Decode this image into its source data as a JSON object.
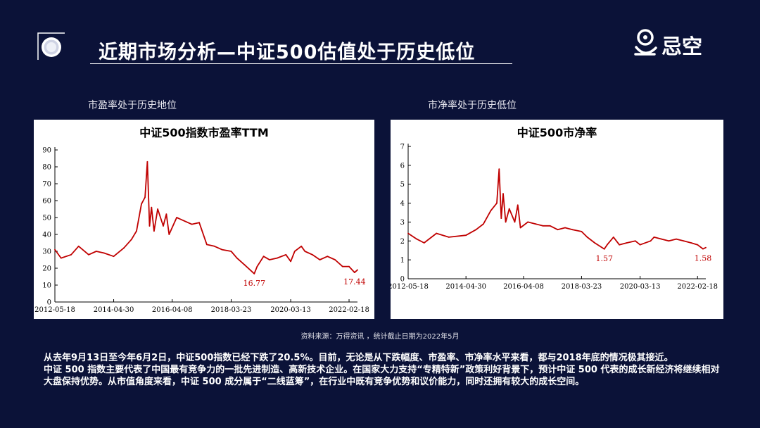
{
  "header": {
    "title": "近期市场分析—中证500估值处于历史低位",
    "logo_text": "忌空",
    "logo_icon": "brand-logo-icon",
    "corner_icon": "circle-bracket-icon"
  },
  "captions": {
    "left": "市盈率处于历史地位",
    "right": "市净率处于历史低位"
  },
  "source_note": "资料来源：万得资讯 ，统计截止日期为2022年5月",
  "paragraphs": [
    "从去年9月13日至今年6月2日，中证500指数已经下跌了20.5%。目前，无论是从下跌幅度、市盈率、市净率水平来看，都与2018年底的情况极其接近。",
    "中证 500 指数主要代表了中国最有竞争力的一批先进制造、高新技术企业。在国家大力支持“专精特新”政策利好背景下，预计中证 500 代表的成长新经济将继续相对大盘保持优势。从市值角度来看，中证 500 成分属于“二线蓝筹”，在行业中既有竞争优势和议价能力，同时还拥有较大的成长空间。"
  ],
  "colors": {
    "background": "#0b1238",
    "line": "#c00000",
    "annotation": "#c00000"
  },
  "chart_data": [
    {
      "type": "line",
      "title": "中证500指数市盈率TTM",
      "xlabel": "",
      "ylabel": "",
      "xlim": [
        "2012-05-18",
        "2022-05-31"
      ],
      "ylim": [
        0,
        90
      ],
      "yticks": [
        0,
        10,
        20,
        30,
        40,
        50,
        60,
        70,
        80,
        90
      ],
      "xtick_labels": [
        "2012-05-18",
        "2014-04-30",
        "2016-04-08",
        "2018-03-23",
        "2020-03-13",
        "2022-02-18"
      ],
      "grid": false,
      "annotations": [
        {
          "x": "2018-12-28",
          "y": 16.77,
          "text": "16.77"
        },
        {
          "x": "2022-04-26",
          "y": 17.44,
          "text": "17.44"
        }
      ],
      "series": [
        {
          "x": [
            "2012-05-18",
            "2012-08-01",
            "2012-12-01",
            "2013-03-01",
            "2013-07-01",
            "2013-10-01",
            "2014-01-01",
            "2014-04-30",
            "2014-09-01",
            "2014-12-01",
            "2015-02-01",
            "2015-04-01",
            "2015-05-15",
            "2015-06-12",
            "2015-07-08",
            "2015-08-01",
            "2015-09-01",
            "2015-10-15",
            "2015-12-22",
            "2016-01-28",
            "2016-03-01",
            "2016-06-01",
            "2016-09-01",
            "2016-12-01",
            "2017-03-01",
            "2017-06-01",
            "2017-09-01",
            "2017-12-01",
            "2018-03-23",
            "2018-06-01",
            "2018-09-01",
            "2018-12-28",
            "2019-02-01",
            "2019-04-20",
            "2019-07-01",
            "2019-10-01",
            "2020-01-15",
            "2020-03-13",
            "2020-05-01",
            "2020-07-20",
            "2020-09-01",
            "2020-12-01",
            "2021-03-01",
            "2021-06-01",
            "2021-09-01",
            "2021-12-01",
            "2022-02-18",
            "2022-04-26",
            "2022-05-31"
          ],
          "values": [
            31,
            26,
            28,
            33,
            28,
            30,
            29,
            27,
            32,
            37,
            42,
            58,
            62,
            83,
            45,
            56,
            42,
            55,
            45,
            52,
            40,
            50,
            48,
            46,
            47,
            34,
            33,
            31,
            30,
            26,
            22,
            16.77,
            21,
            27,
            25,
            26,
            28,
            24,
            30,
            33,
            30,
            28,
            25,
            27,
            25,
            21,
            21,
            17.44,
            19
          ]
        }
      ]
    },
    {
      "type": "line",
      "title": "中证500市净率",
      "xlabel": "",
      "ylabel": "",
      "xlim": [
        "2012-05-18",
        "2022-05-31"
      ],
      "ylim": [
        0,
        7
      ],
      "yticks": [
        0,
        1,
        2,
        3,
        4,
        5,
        6,
        7
      ],
      "xtick_labels": [
        "2012-05-18",
        "2014-04-30",
        "2016-04-08",
        "2018-03-23",
        "2020-03-13",
        "2022-02-18"
      ],
      "grid": false,
      "annotations": [
        {
          "x": "2018-12-28",
          "y": 1.57,
          "text": "1.57"
        },
        {
          "x": "2022-04-26",
          "y": 1.58,
          "text": "1.58"
        }
      ],
      "series": [
        {
          "x": [
            "2012-05-18",
            "2012-09-01",
            "2012-12-01",
            "2013-05-01",
            "2013-10-01",
            "2014-04-30",
            "2014-09-01",
            "2014-12-01",
            "2015-03-01",
            "2015-05-15",
            "2015-06-12",
            "2015-07-08",
            "2015-08-01",
            "2015-09-01",
            "2015-10-15",
            "2015-12-22",
            "2016-01-28",
            "2016-03-01",
            "2016-06-01",
            "2016-09-01",
            "2016-12-01",
            "2017-03-01",
            "2017-06-01",
            "2017-09-01",
            "2017-12-01",
            "2018-03-23",
            "2018-06-01",
            "2018-09-01",
            "2018-12-28",
            "2019-02-01",
            "2019-04-20",
            "2019-07-01",
            "2019-10-01",
            "2020-01-15",
            "2020-03-13",
            "2020-07-20",
            "2020-09-01",
            "2020-12-01",
            "2021-03-01",
            "2021-06-01",
            "2021-09-01",
            "2021-12-01",
            "2022-02-18",
            "2022-04-26",
            "2022-05-31"
          ],
          "values": [
            2.4,
            2.1,
            1.9,
            2.4,
            2.2,
            2.3,
            2.6,
            2.9,
            3.6,
            4.0,
            5.8,
            3.2,
            4.5,
            3.0,
            3.7,
            3.0,
            3.9,
            2.7,
            3.0,
            2.9,
            2.8,
            2.8,
            2.6,
            2.7,
            2.6,
            2.5,
            2.2,
            1.9,
            1.57,
            1.8,
            2.2,
            1.8,
            1.9,
            2.0,
            1.8,
            2.0,
            2.2,
            2.1,
            2.0,
            2.1,
            2.0,
            1.9,
            1.8,
            1.58,
            1.65
          ]
        }
      ]
    }
  ]
}
